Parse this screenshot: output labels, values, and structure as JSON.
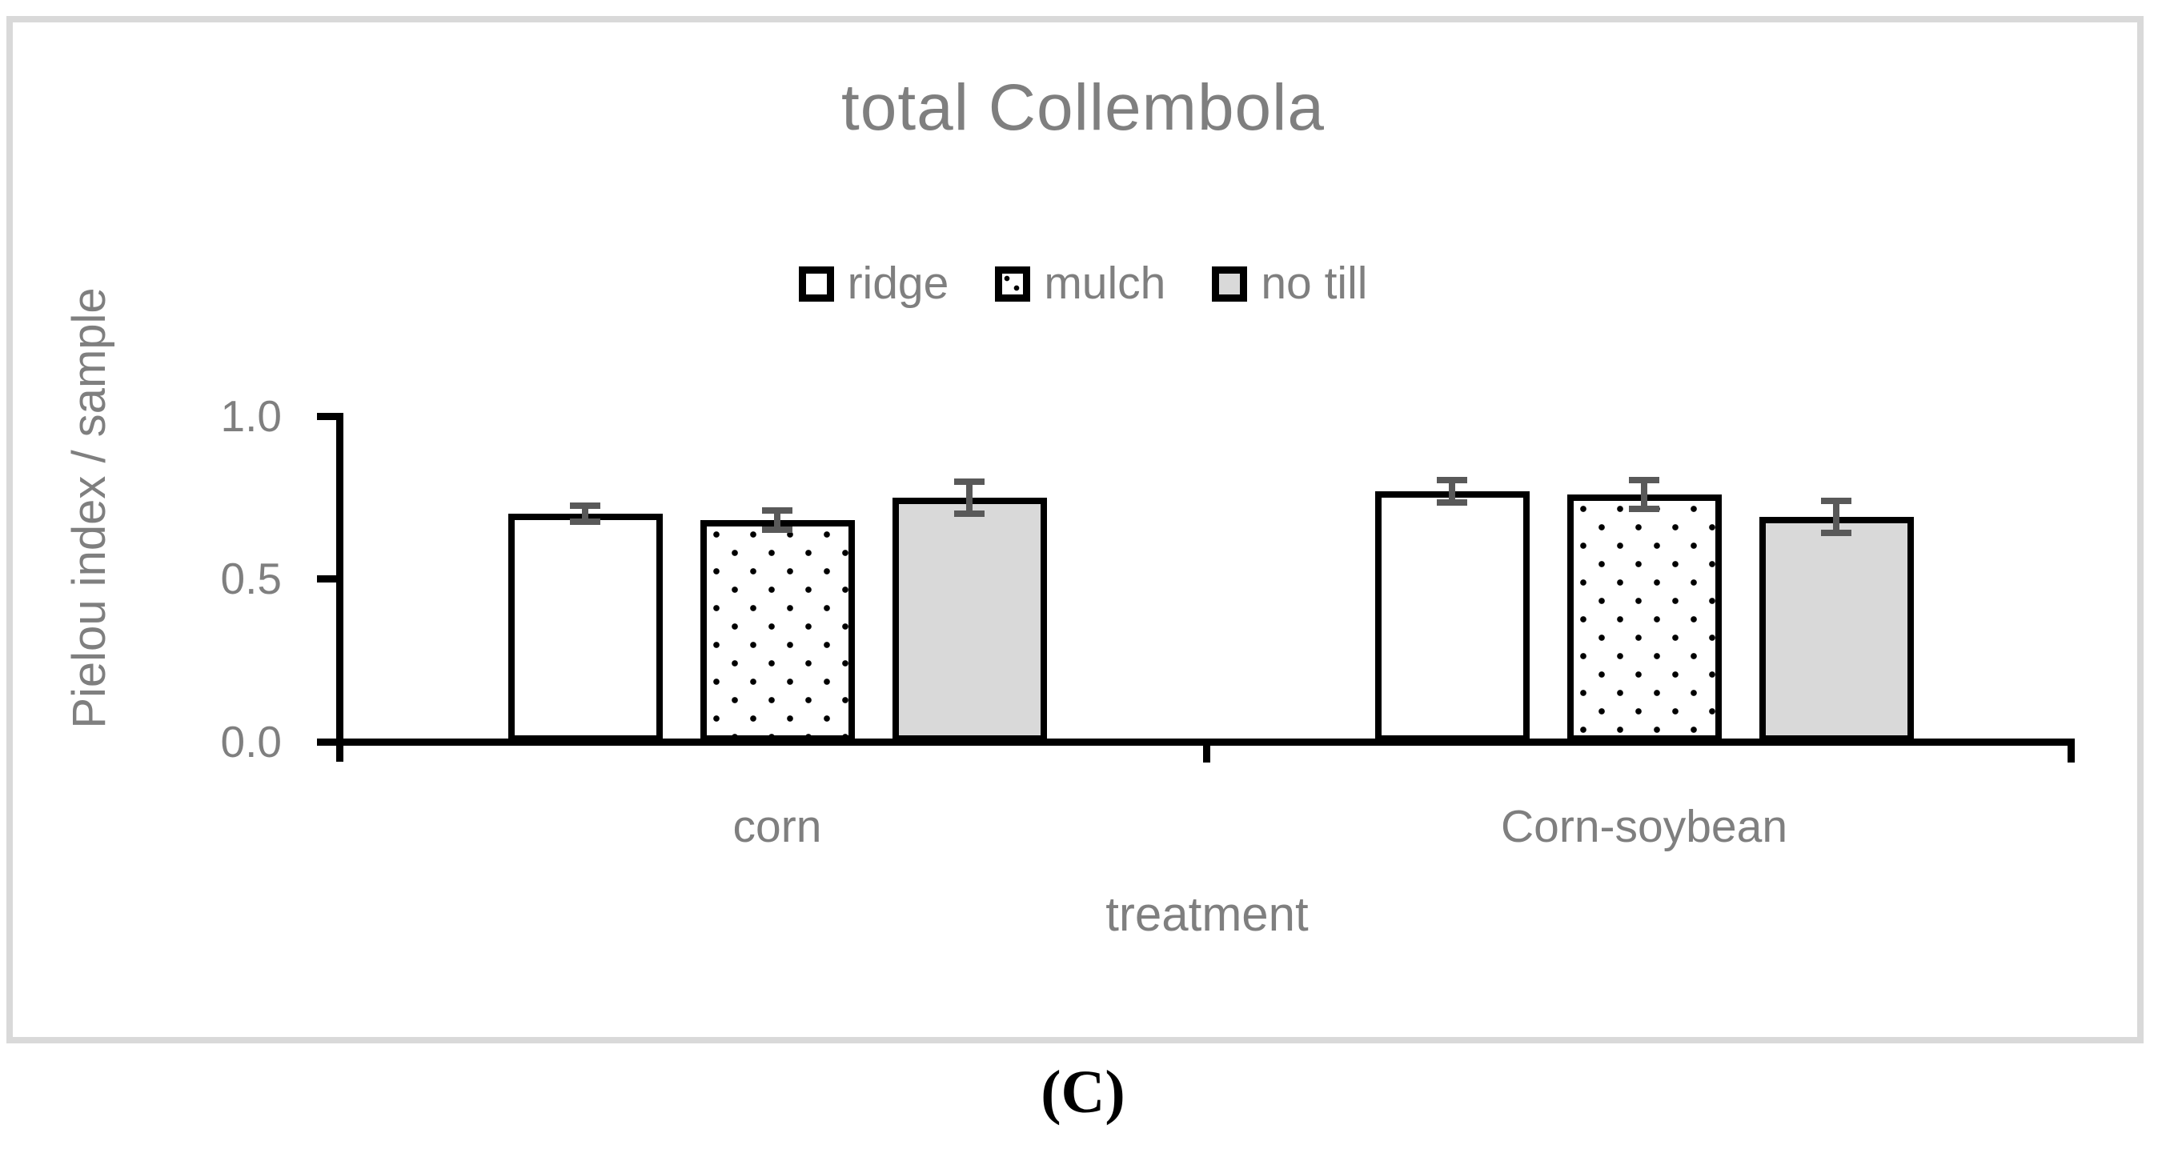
{
  "figure": {
    "caption": "(C)"
  },
  "chart_data": {
    "type": "bar",
    "title": "total Collembola",
    "xlabel": "treatment",
    "ylabel": "Pielou index / sample",
    "ylim": [
      0.0,
      1.0
    ],
    "yticks": [
      1.0,
      0.5,
      0.0
    ],
    "ytick_labels": [
      "1.0",
      "0.5",
      "0.0"
    ],
    "categories": [
      "corn",
      "Corn-soybean"
    ],
    "legend_position": "top-center",
    "grid": false,
    "series": [
      {
        "name": "ridge",
        "fill": "white",
        "values": [
          0.7,
          0.77
        ],
        "errors": [
          0.025,
          0.035
        ]
      },
      {
        "name": "mulch",
        "fill": "dotted",
        "values": [
          0.68,
          0.76
        ],
        "errors": [
          0.03,
          0.045
        ]
      },
      {
        "name": "no till",
        "fill": "gray",
        "values": [
          0.75,
          0.69
        ],
        "errors": [
          0.05,
          0.05
        ]
      }
    ],
    "colors": {
      "bar_border": "#000000",
      "gray_fill": "#d9d9d9",
      "dot_pattern": "#000000",
      "error_bar": "#595959",
      "text": "#7f7f7f",
      "frame_border": "#d9d9d9",
      "axis": "#000000"
    }
  }
}
